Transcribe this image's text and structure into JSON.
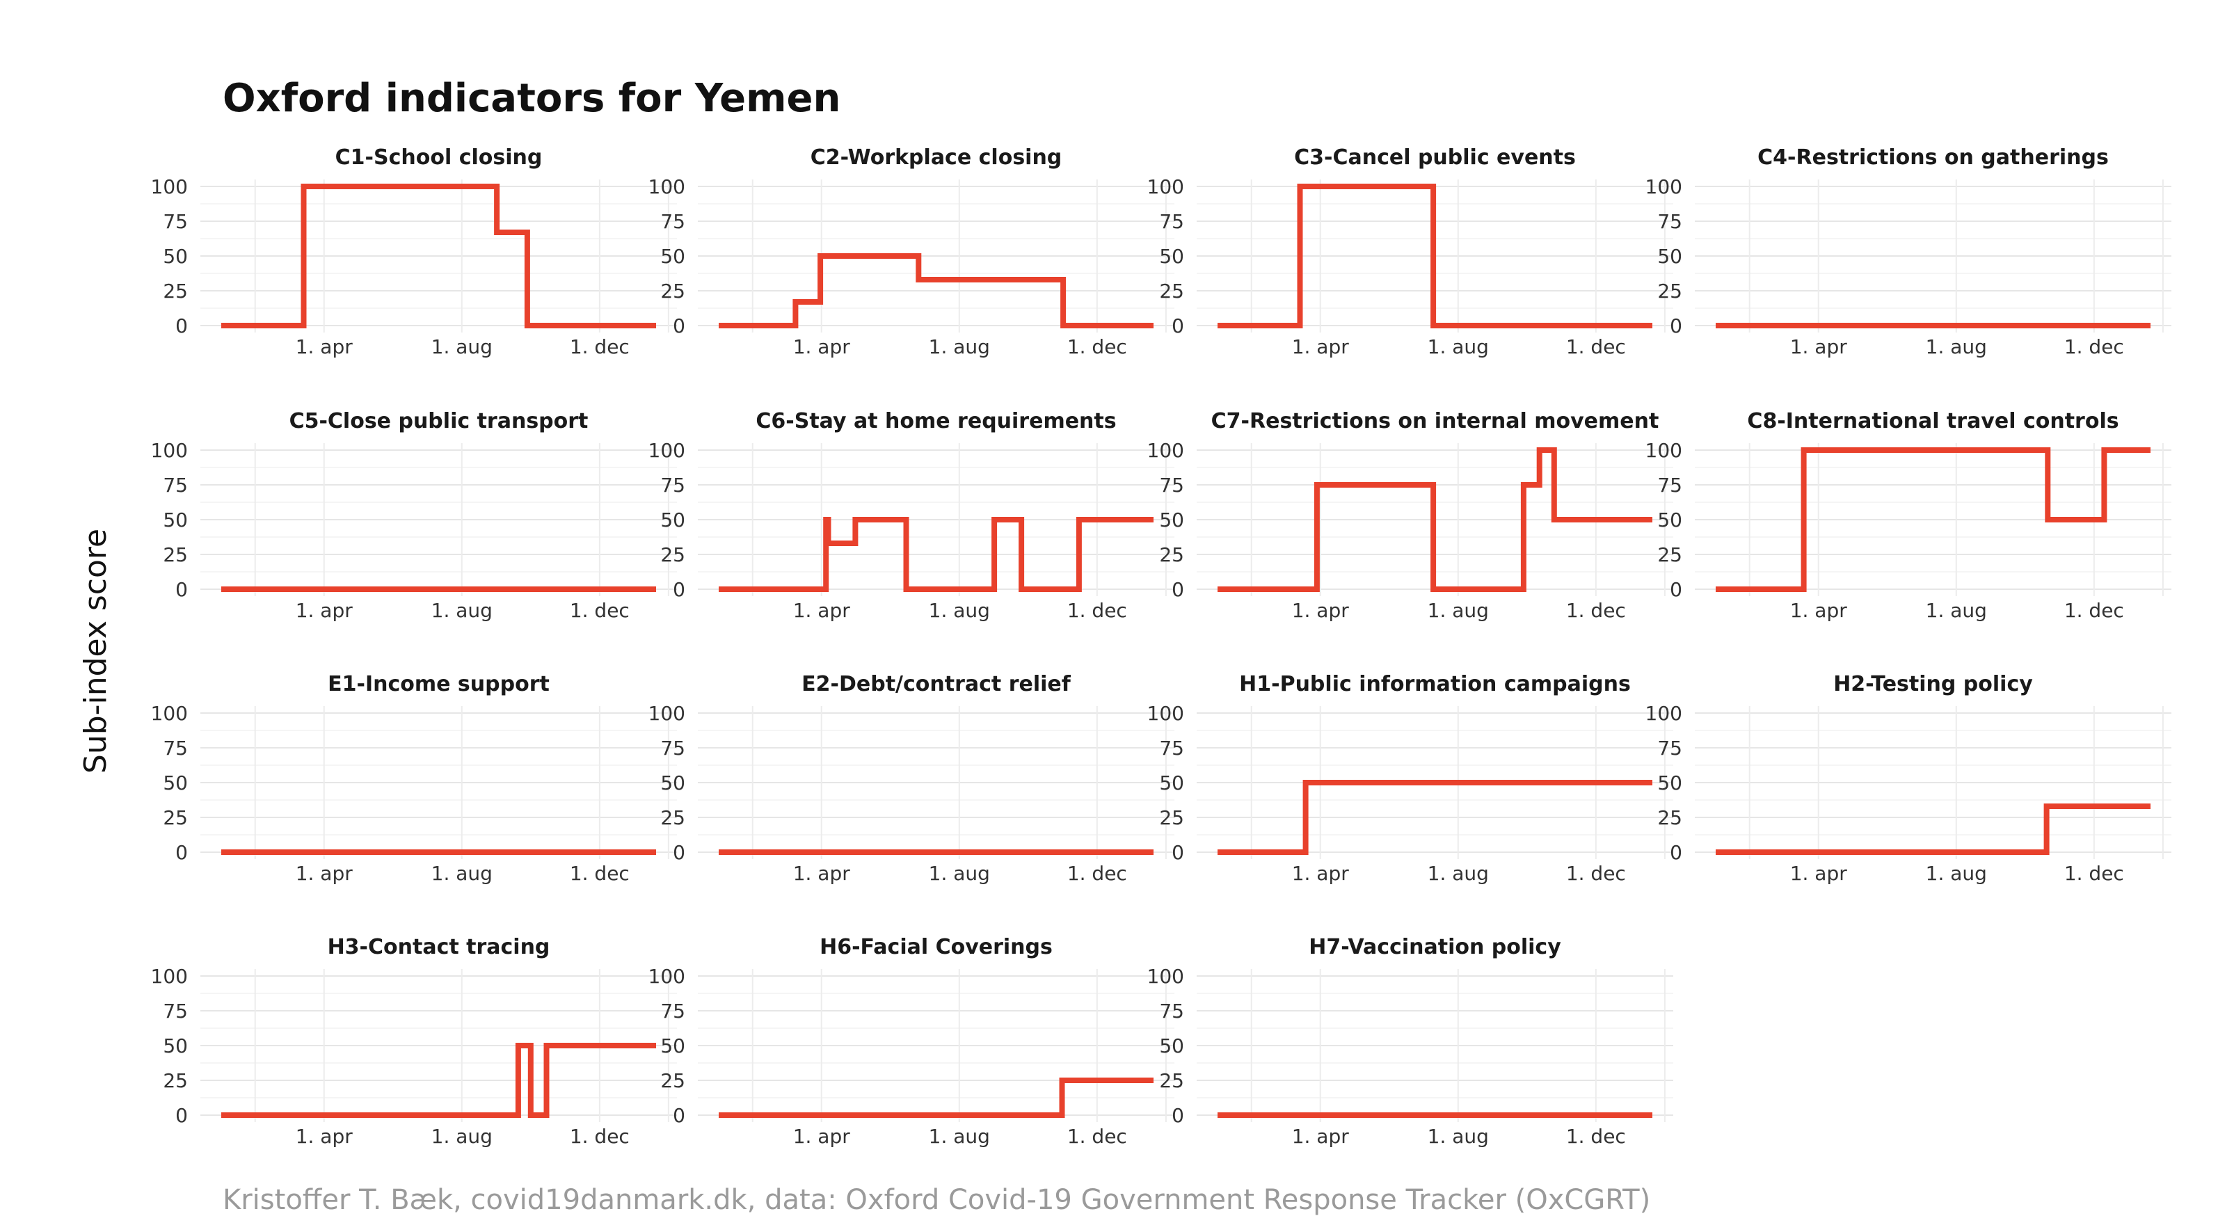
{
  "chart_data": {
    "type": "line",
    "title": "Oxford indicators for Yemen",
    "ylabel": "Sub-index score",
    "caption": "Kristoffer T. Bæk, covid19danmark.dk, data: Oxford Covid-19 Government Response Tracker (OxCGRT)",
    "line_color": "#e8412c",
    "grid": true,
    "layout": {
      "columns": 4,
      "rows": 4
    },
    "x_domain": [
      "2020-01-01",
      "2021-01-20"
    ],
    "ylim": [
      0,
      100
    ],
    "y_ticks": [
      0,
      25,
      50,
      75,
      100
    ],
    "x_ticks": [
      {
        "date": "2020-04-01",
        "label": "1. apr"
      },
      {
        "date": "2020-08-01",
        "label": "1. aug"
      },
      {
        "date": "2020-12-01",
        "label": "1. dec"
      }
    ],
    "panels": [
      {
        "name": "C1-School closing",
        "steps": [
          [
            "2020-01-01",
            0
          ],
          [
            "2020-03-14",
            100
          ],
          [
            "2020-09-01",
            67
          ],
          [
            "2020-09-28",
            0
          ],
          [
            "2021-01-20",
            0
          ]
        ]
      },
      {
        "name": "C2-Workplace closing",
        "steps": [
          [
            "2020-01-01",
            0
          ],
          [
            "2020-03-09",
            17
          ],
          [
            "2020-03-31",
            50
          ],
          [
            "2020-06-26",
            33
          ],
          [
            "2020-11-01",
            0
          ],
          [
            "2021-01-20",
            0
          ]
        ]
      },
      {
        "name": "C3-Cancel public events",
        "steps": [
          [
            "2020-01-01",
            0
          ],
          [
            "2020-03-14",
            100
          ],
          [
            "2020-07-10",
            0
          ],
          [
            "2021-01-20",
            0
          ]
        ]
      },
      {
        "name": "C4-Restrictions on gatherings",
        "steps": [
          [
            "2020-01-01",
            0
          ],
          [
            "2021-01-20",
            0
          ]
        ]
      },
      {
        "name": "C5-Close public transport",
        "steps": [
          [
            "2020-01-01",
            0
          ],
          [
            "2021-01-20",
            0
          ]
        ]
      },
      {
        "name": "C6-Stay at home requirements",
        "steps": [
          [
            "2020-01-01",
            0
          ],
          [
            "2020-04-05",
            50
          ],
          [
            "2020-04-07",
            33
          ],
          [
            "2020-05-01",
            50
          ],
          [
            "2020-06-15",
            0
          ],
          [
            "2020-09-01",
            50
          ],
          [
            "2020-09-25",
            0
          ],
          [
            "2020-11-15",
            50
          ],
          [
            "2021-01-20",
            50
          ]
        ]
      },
      {
        "name": "C7-Restrictions on internal movement",
        "steps": [
          [
            "2020-01-01",
            0
          ],
          [
            "2020-03-29",
            75
          ],
          [
            "2020-07-10",
            0
          ],
          [
            "2020-09-28",
            75
          ],
          [
            "2020-10-12",
            100
          ],
          [
            "2020-10-25",
            50
          ],
          [
            "2021-01-20",
            50
          ]
        ]
      },
      {
        "name": "C8-International travel controls",
        "steps": [
          [
            "2020-01-01",
            0
          ],
          [
            "2020-03-19",
            100
          ],
          [
            "2020-10-21",
            50
          ],
          [
            "2020-12-10",
            100
          ],
          [
            "2021-01-20",
            100
          ]
        ]
      },
      {
        "name": "E1-Income support",
        "steps": [
          [
            "2020-01-01",
            0
          ],
          [
            "2021-01-20",
            0
          ]
        ]
      },
      {
        "name": "E2-Debt/contract relief",
        "steps": [
          [
            "2020-01-01",
            0
          ],
          [
            "2021-01-20",
            0
          ]
        ]
      },
      {
        "name": "H1-Public information campaigns",
        "steps": [
          [
            "2020-01-01",
            0
          ],
          [
            "2020-03-19",
            50
          ],
          [
            "2021-01-20",
            50
          ]
        ]
      },
      {
        "name": "H2-Testing policy",
        "steps": [
          [
            "2020-01-01",
            0
          ],
          [
            "2020-10-20",
            33
          ],
          [
            "2021-01-20",
            33
          ]
        ]
      },
      {
        "name": "H3-Contact tracing",
        "steps": [
          [
            "2020-01-01",
            0
          ],
          [
            "2020-09-20",
            50
          ],
          [
            "2020-10-01",
            0
          ],
          [
            "2020-10-15",
            50
          ],
          [
            "2021-01-20",
            50
          ]
        ]
      },
      {
        "name": "H6-Facial Coverings",
        "steps": [
          [
            "2020-01-01",
            0
          ],
          [
            "2020-10-31",
            25
          ],
          [
            "2021-01-20",
            25
          ]
        ]
      },
      {
        "name": "H7-Vaccination policy",
        "steps": [
          [
            "2020-01-01",
            0
          ],
          [
            "2021-01-20",
            0
          ]
        ]
      }
    ]
  }
}
